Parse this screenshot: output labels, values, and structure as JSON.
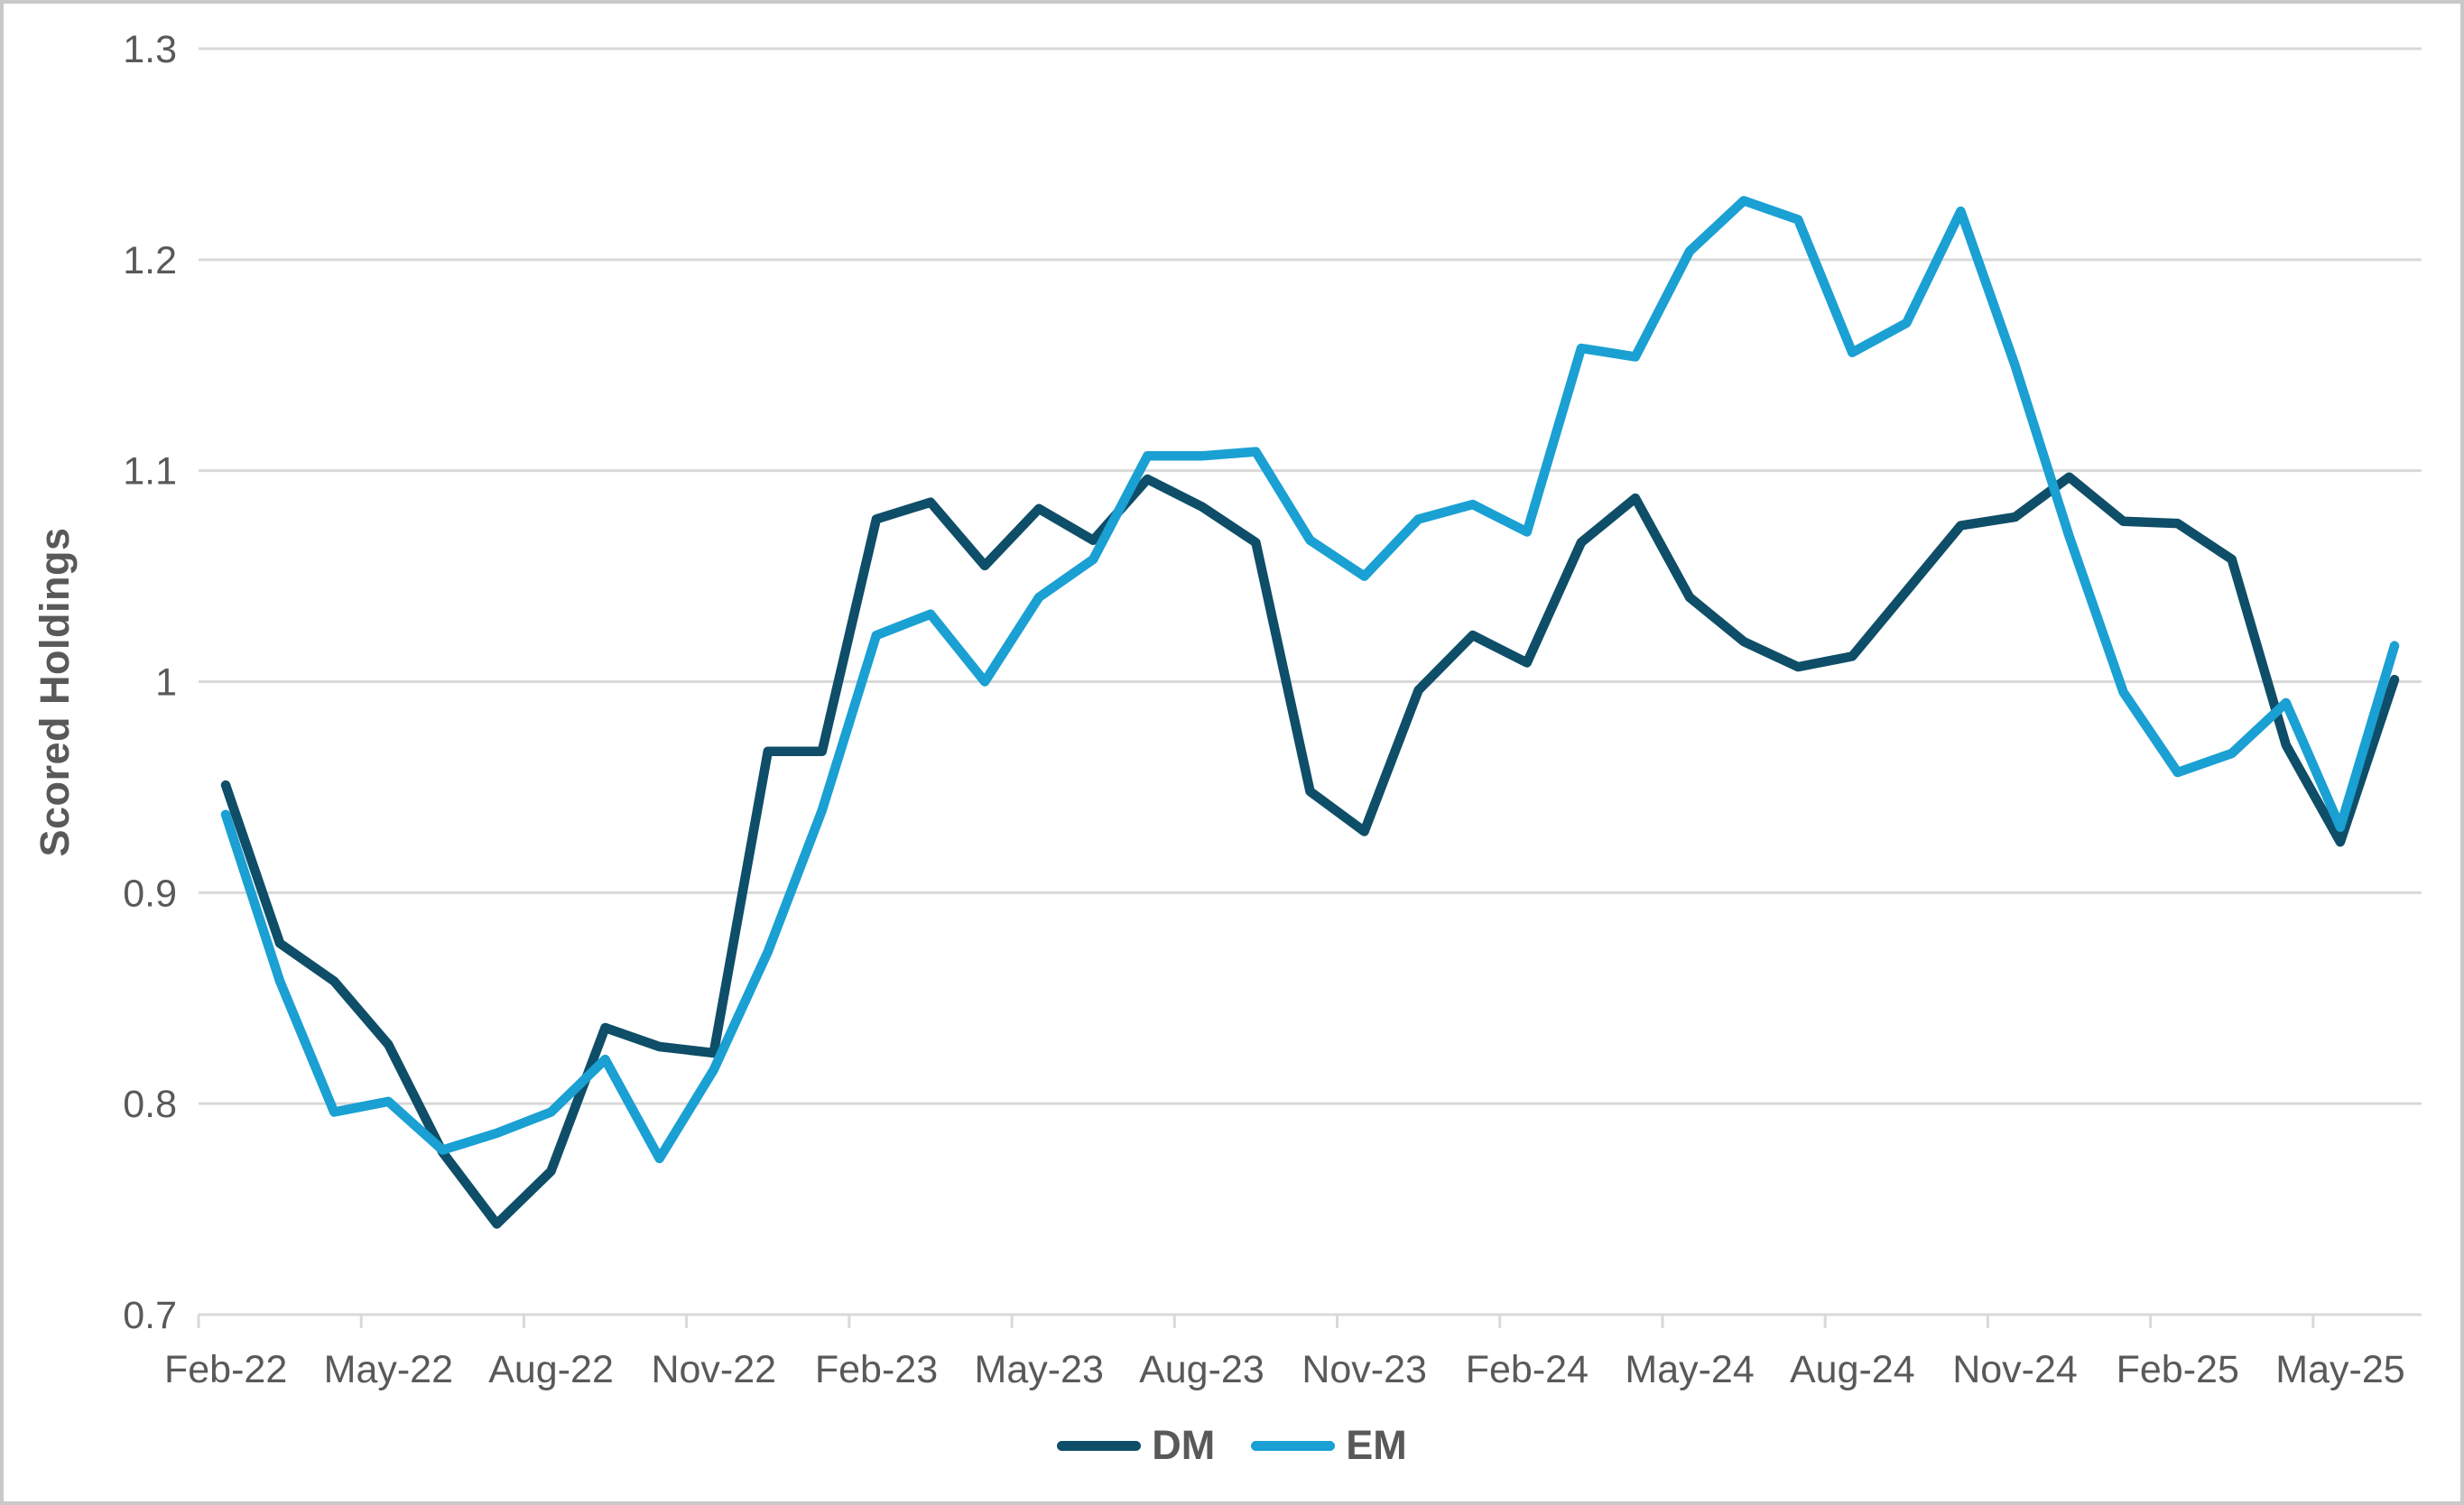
{
  "chart_data": {
    "type": "line",
    "title": "",
    "ylabel": "Scored Holdings",
    "xlabel": "",
    "ylim": [
      0.7,
      1.3
    ],
    "ytick_step": 0.1,
    "ytick_labels": [
      "0.7",
      "0.8",
      "0.9",
      "1",
      "1.1",
      "1.2",
      "1.3"
    ],
    "grid": true,
    "legend_position": "bottom-center",
    "x_tick_label_every": 3,
    "x_tick_labels": [
      "Feb-22",
      "May-22",
      "Aug-22",
      "Nov-22",
      "Feb-23",
      "May-23",
      "Aug-23",
      "Nov-23",
      "Feb-24",
      "May-24",
      "Aug-24",
      "Nov-24",
      "Feb-25",
      "May-25"
    ],
    "x": [
      "Feb-22",
      "Mar-22",
      "Apr-22",
      "May-22",
      "Jun-22",
      "Jul-22",
      "Aug-22",
      "Sep-22",
      "Oct-22",
      "Nov-22",
      "Dec-22",
      "Jan-23",
      "Feb-23",
      "Mar-23",
      "Apr-23",
      "May-23",
      "Jun-23",
      "Jul-23",
      "Aug-23",
      "Sep-23",
      "Oct-23",
      "Nov-23",
      "Dec-23",
      "Jan-24",
      "Feb-24",
      "Mar-24",
      "Apr-24",
      "May-24",
      "Jun-24",
      "Jul-24",
      "Aug-24",
      "Sep-24",
      "Oct-24",
      "Nov-24",
      "Dec-24",
      "Jan-25",
      "Feb-25",
      "Mar-25",
      "Apr-25",
      "May-25",
      "Jun-25"
    ],
    "series": [
      {
        "name": "DM",
        "color": "#0E4E68",
        "values": [
          0.951,
          0.876,
          0.858,
          0.828,
          0.777,
          0.743,
          0.768,
          0.836,
          0.827,
          0.824,
          0.967,
          0.967,
          1.077,
          1.085,
          1.055,
          1.082,
          1.067,
          1.096,
          1.083,
          1.066,
          0.948,
          0.929,
          0.996,
          1.022,
          1.009,
          1.066,
          1.087,
          1.04,
          1.019,
          1.007,
          1.012,
          1.043,
          1.074,
          1.078,
          1.097,
          1.076,
          1.075,
          1.058,
          0.97,
          0.924,
          1.001
        ]
      },
      {
        "name": "EM",
        "color": "#1AA0D3",
        "values": [
          0.937,
          0.858,
          0.796,
          0.801,
          0.778,
          0.786,
          0.796,
          0.821,
          0.774,
          0.816,
          0.872,
          0.939,
          1.022,
          1.032,
          1.0,
          1.04,
          1.058,
          1.107,
          1.107,
          1.109,
          1.067,
          1.05,
          1.077,
          1.084,
          1.071,
          1.158,
          1.154,
          1.204,
          1.228,
          1.219,
          1.156,
          1.17,
          1.223,
          1.15,
          1.069,
          0.995,
          0.957,
          0.966,
          0.99,
          0.931,
          1.017
        ]
      }
    ],
    "colors": {
      "gridline": "#D9D9D9",
      "axis_line": "#D9D9D9",
      "tick_text": "#595959",
      "frame_border": "#C9C9C9"
    }
  }
}
